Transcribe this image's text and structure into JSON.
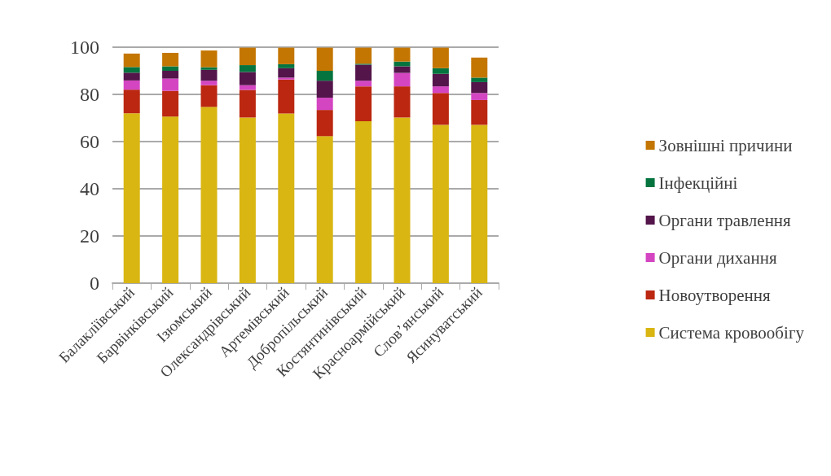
{
  "chart_data": {
    "type": "bar",
    "stacked": true,
    "categories": [
      "Балакліївський",
      "Барвінківський",
      "Ізюмський",
      "Олександрівський",
      "Артемівський",
      "Добропільський",
      "Костянтинівський",
      "Красноармійський",
      "Слов’янський",
      "Ясинуватський"
    ],
    "series": [
      {
        "name": "Система кровообігу",
        "color": "#d9b612",
        "values": [
          72,
          70.6,
          74.7,
          70.2,
          71.9,
          62.3,
          68.6,
          70.2,
          67.1,
          67.1
        ]
      },
      {
        "name": "Новоутворення",
        "color": "#bb2710",
        "values": [
          10,
          10.9,
          9.2,
          11.7,
          14.4,
          11.1,
          14.8,
          13.2,
          13.5,
          10.5
        ]
      },
      {
        "name": "Органи дихання",
        "color": "#d445c2",
        "values": [
          3.9,
          5.2,
          1.9,
          2,
          0.8,
          5.2,
          2.4,
          5.7,
          2.8,
          3
        ]
      },
      {
        "name": "Органи травлення",
        "color": "#53154a",
        "values": [
          3.3,
          3.3,
          4.6,
          5.6,
          4,
          7.2,
          6.8,
          2.8,
          5.3,
          4.6
        ]
      },
      {
        "name": "Інфекційні",
        "color": "#06743f",
        "values": [
          2.4,
          1.9,
          1.1,
          2.9,
          1.7,
          4.2,
          0.4,
          2,
          2.4,
          1.9
        ]
      },
      {
        "name": "Зовнішні причини",
        "color": "#c47602",
        "values": [
          5.7,
          5.7,
          7.1,
          7.4,
          7,
          9.8,
          6.8,
          5.9,
          8.7,
          8.5
        ]
      }
    ],
    "ylim": [
      0,
      100
    ],
    "yticks": [
      0,
      20,
      40,
      60,
      80,
      100
    ],
    "grid": "y",
    "legend": "right"
  }
}
